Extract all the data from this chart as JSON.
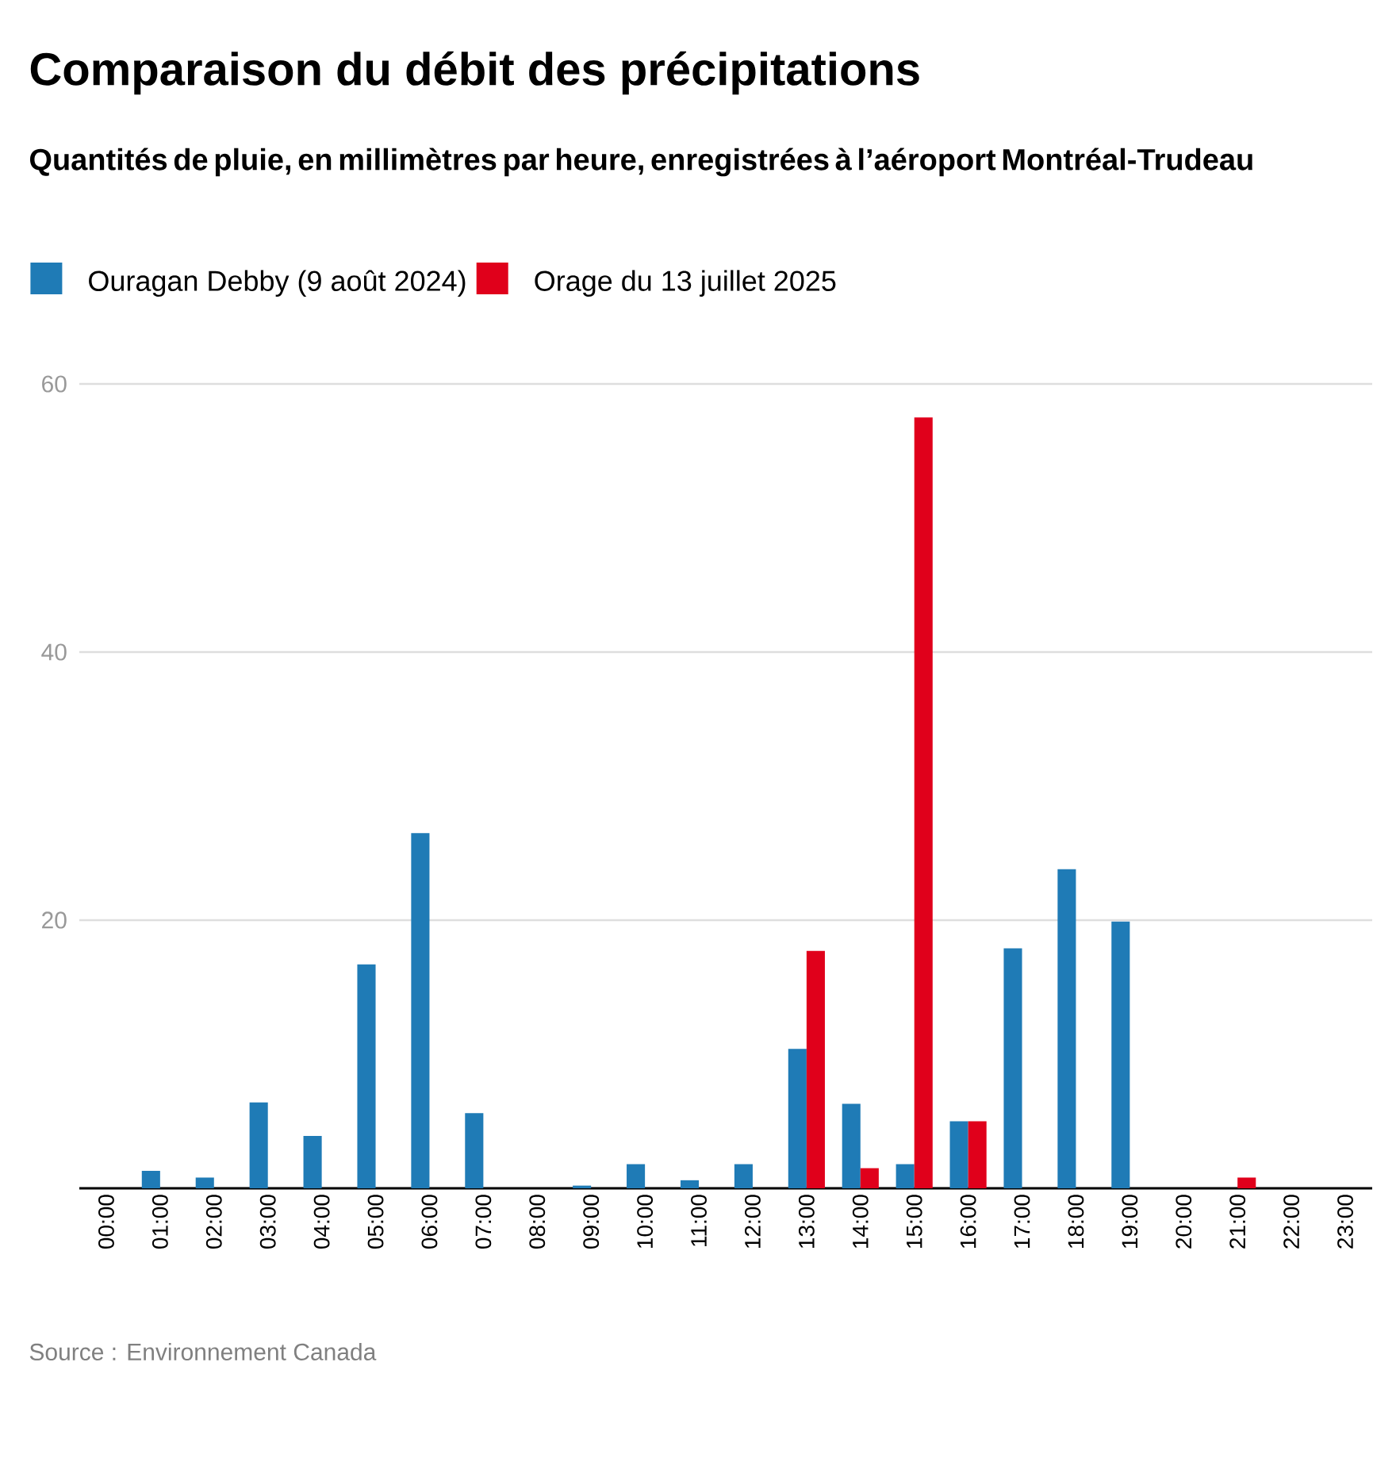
{
  "chart_data": {
    "type": "bar",
    "title": "Comparaison du débit des précipitations",
    "subtitle": "Quantités de pluie, en millimètres par heure, enregistrées à l’aéroport Montréal-Trudeau",
    "categories": [
      "00:00",
      "01:00",
      "02:00",
      "03:00",
      "04:00",
      "05:00",
      "06:00",
      "07:00",
      "08:00",
      "09:00",
      "10:00",
      "11:00",
      "12:00",
      "13:00",
      "14:00",
      "15:00",
      "16:00",
      "17:00",
      "18:00",
      "19:00",
      "20:00",
      "21:00",
      "22:00",
      "23:00"
    ],
    "series": [
      {
        "name": "Ouragan Debby (9 août 2024)",
        "color": "#1f7bb6",
        "values": [
          0,
          1.3,
          0.8,
          6.4,
          3.9,
          16.7,
          26.5,
          5.6,
          0,
          0.2,
          1.8,
          0.6,
          1.8,
          10.4,
          6.3,
          1.8,
          5.0,
          17.9,
          23.8,
          19.9,
          0,
          0,
          0,
          0
        ]
      },
      {
        "name": "Orage du 13 juillet 2025",
        "color": "#e0001b",
        "values": [
          0,
          0,
          0,
          0,
          0,
          0,
          0,
          0,
          0,
          0,
          0,
          0,
          0,
          17.7,
          1.5,
          57.5,
          5.0,
          0,
          0,
          0,
          0,
          0.8,
          0,
          0
        ]
      }
    ],
    "ylim": [
      0,
      60
    ],
    "yticks": [
      {
        "value": 0,
        "label": null
      },
      20,
      40,
      60
    ],
    "grid": "y",
    "legend": "top left",
    "annotations": [
      "Source : Environnement Canada"
    ]
  }
}
